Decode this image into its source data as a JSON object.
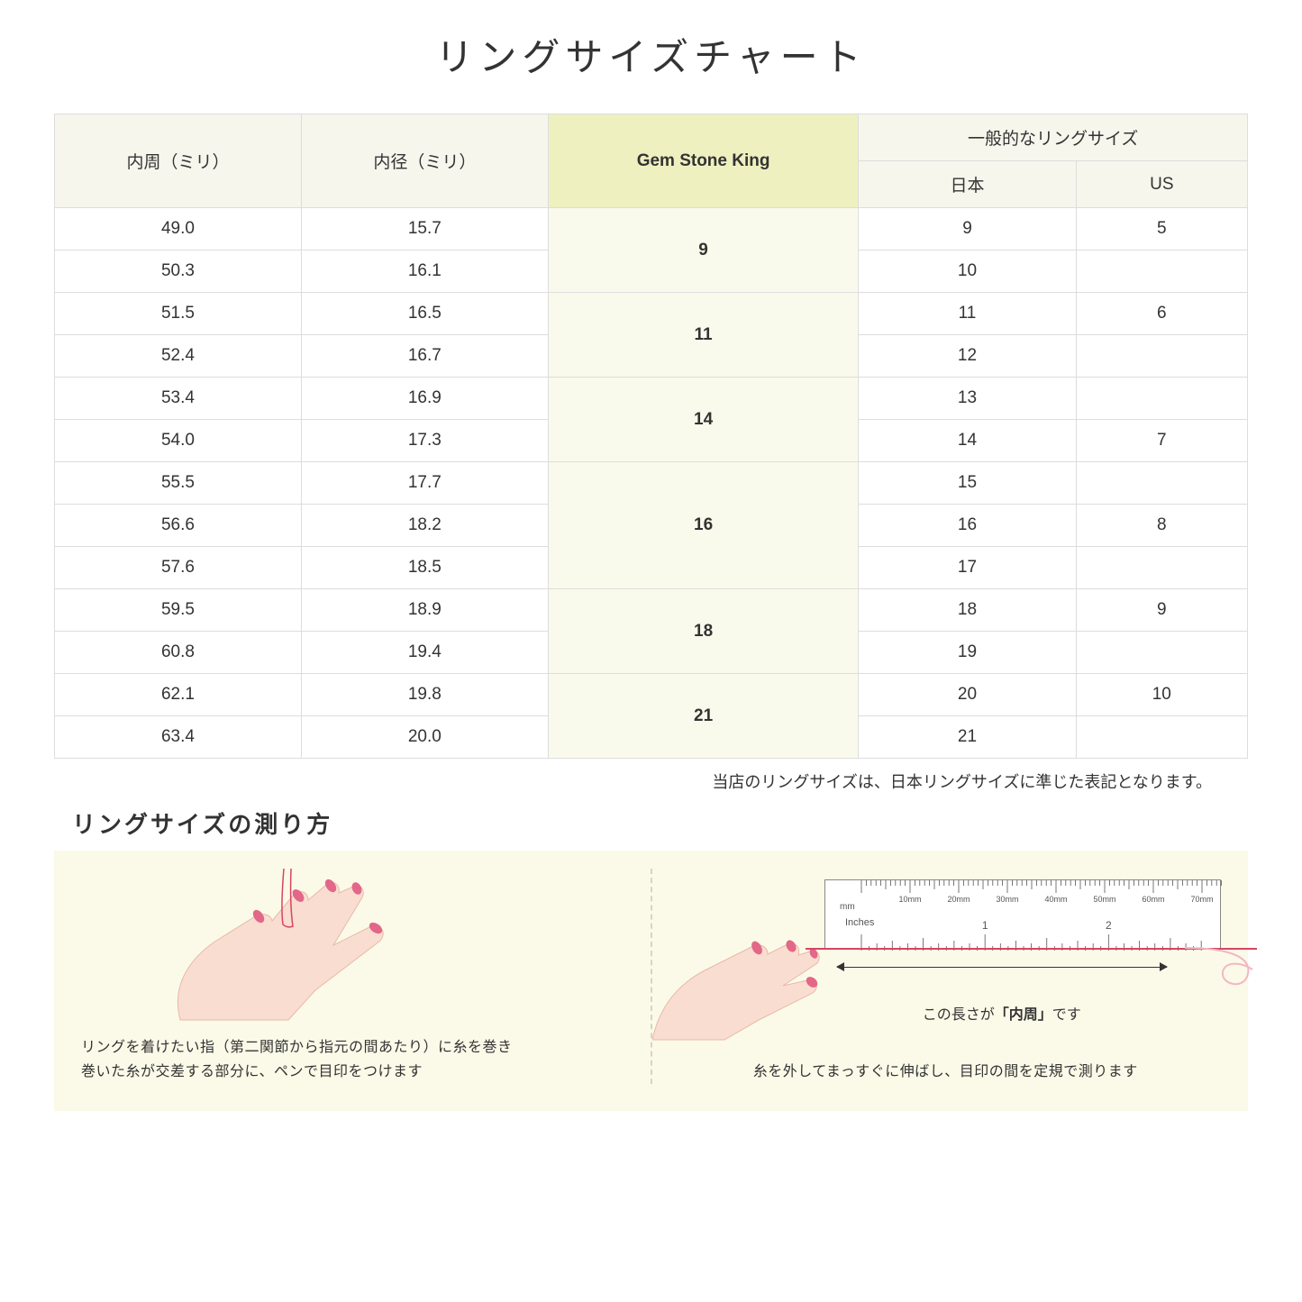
{
  "title": "リングサイズチャート",
  "table": {
    "headers": {
      "circumference": "内周（ミリ）",
      "diameter": "内径（ミリ）",
      "gsk": "Gem Stone King",
      "general_top": "一般的なリングサイズ",
      "japan": "日本",
      "us": "US"
    },
    "groups": [
      {
        "gsk": "9",
        "rows": [
          {
            "c": "49.0",
            "d": "15.7",
            "jp": "9",
            "us": "5"
          },
          {
            "c": "50.3",
            "d": "16.1",
            "jp": "10",
            "us": ""
          }
        ]
      },
      {
        "gsk": "11",
        "rows": [
          {
            "c": "51.5",
            "d": "16.5",
            "jp": "11",
            "us": "6"
          },
          {
            "c": "52.4",
            "d": "16.7",
            "jp": "12",
            "us": ""
          }
        ]
      },
      {
        "gsk": "14",
        "rows": [
          {
            "c": "53.4",
            "d": "16.9",
            "jp": "13",
            "us": ""
          },
          {
            "c": "54.0",
            "d": "17.3",
            "jp": "14",
            "us": "7"
          }
        ]
      },
      {
        "gsk": "16",
        "rows": [
          {
            "c": "55.5",
            "d": "17.7",
            "jp": "15",
            "us": ""
          },
          {
            "c": "56.6",
            "d": "18.2",
            "jp": "16",
            "us": "8"
          },
          {
            "c": "57.6",
            "d": "18.5",
            "jp": "17",
            "us": ""
          }
        ]
      },
      {
        "gsk": "18",
        "rows": [
          {
            "c": "59.5",
            "d": "18.9",
            "jp": "18",
            "us": "9"
          },
          {
            "c": "60.8",
            "d": "19.4",
            "jp": "19",
            "us": ""
          }
        ]
      },
      {
        "gsk": "21",
        "rows": [
          {
            "c": "62.1",
            "d": "19.8",
            "jp": "20",
            "us": "10"
          },
          {
            "c": "63.4",
            "d": "20.0",
            "jp": "21",
            "us": ""
          }
        ]
      }
    ]
  },
  "note": "当店のリングサイズは、日本リングサイズに準じた表記となります。",
  "howto": {
    "title": "リングサイズの測り方",
    "left_caption_l1": "リングを着けたい指（第二関節から指元の間あたり）に糸を巻き",
    "left_caption_l2": "巻いた糸が交差する部分に、ペンで目印をつけます",
    "right_caption": "糸を外してまっすぐに伸ばし、目印の間を定規で測ります",
    "measure_label_pre": "この長さが",
    "measure_label_bold": "「内周」",
    "measure_label_post": "です",
    "ruler_mm_label": "mm",
    "ruler_inches_label": "Inches",
    "ruler_mm_ticks": [
      "10mm",
      "20mm",
      "30mm",
      "40mm",
      "50mm",
      "60mm",
      "70mm"
    ],
    "ruler_inch_majors": [
      "1",
      "2"
    ]
  },
  "colors": {
    "header_bg": "#f6f6ed",
    "gsk_header_bg": "#eff0c0",
    "gsk_cell_bg": "#fafaec",
    "border": "#dddddd",
    "panel_bg": "#fbfae8",
    "skin": "#f9ddd0",
    "skin_outline": "#e8b9a8",
    "nail": "#e26788",
    "thread": "#d64560"
  }
}
